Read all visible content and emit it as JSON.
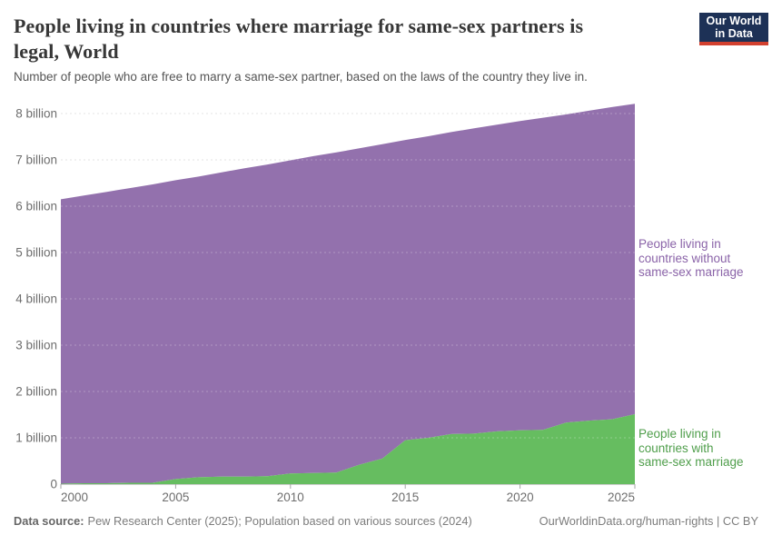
{
  "header": {
    "title_lines": [
      "People living in countries where marriage for same-sex partners is",
      "legal, World"
    ],
    "title": "People living in countries where marriage for same-sex partners is legal, World",
    "subtitle": "Number of people who are free to marry a same-sex partner, based on the laws of the country they live in.",
    "logo": {
      "line1": "Our World",
      "line2": "in Data",
      "bg_color": "#1d3156",
      "accent_color": "#d2402f"
    }
  },
  "chart_data": {
    "type": "area",
    "stacked": true,
    "title": "People living in countries where marriage for same-sex partners is legal, World",
    "xlabel": "",
    "ylabel": "",
    "x": [
      2000,
      2001,
      2002,
      2003,
      2004,
      2005,
      2006,
      2007,
      2008,
      2009,
      2010,
      2011,
      2012,
      2013,
      2014,
      2015,
      2016,
      2017,
      2018,
      2019,
      2020,
      2021,
      2022,
      2023,
      2024,
      2025
    ],
    "series": [
      {
        "name": "People living in countries with same-sex marriage",
        "color": "#66bd60",
        "values": [
          0.01,
          0.02,
          0.02,
          0.03,
          0.03,
          0.11,
          0.15,
          0.16,
          0.16,
          0.17,
          0.23,
          0.24,
          0.25,
          0.42,
          0.55,
          0.95,
          1.0,
          1.08,
          1.09,
          1.14,
          1.16,
          1.17,
          1.33,
          1.37,
          1.4,
          1.51
        ]
      },
      {
        "name": "People living in countries without same-sex marriage",
        "color": "#9371ad",
        "values": [
          6.14,
          6.21,
          6.29,
          6.36,
          6.44,
          6.45,
          6.49,
          6.57,
          6.66,
          6.73,
          6.76,
          6.84,
          6.91,
          6.83,
          6.79,
          6.48,
          6.51,
          6.52,
          6.59,
          6.62,
          6.68,
          6.74,
          6.65,
          6.69,
          6.74,
          6.7
        ]
      }
    ],
    "world_total": [
      6.15,
      6.23,
      6.31,
      6.39,
      6.47,
      6.56,
      6.64,
      6.73,
      6.82,
      6.9,
      6.99,
      7.08,
      7.16,
      7.25,
      7.34,
      7.43,
      7.51,
      7.6,
      7.68,
      7.76,
      7.84,
      7.91,
      7.98,
      8.06,
      8.14,
      8.21
    ],
    "ylim": [
      0,
      8.5
    ],
    "yticks": {
      "values": [
        0,
        1,
        2,
        3,
        4,
        5,
        6,
        7,
        8
      ],
      "labels": [
        "0",
        "1 billion",
        "2 billion",
        "3 billion",
        "4 billion",
        "5 billion",
        "6 billion",
        "7 billion",
        "8 billion"
      ]
    },
    "xticks": [
      2000,
      2005,
      2010,
      2015,
      2020,
      2025
    ],
    "grid": "horizontal dashed",
    "legend_position": "right annotations",
    "grid_color": "#d9d9d9",
    "axis_text_color": "#6e6e6e"
  },
  "annotations": {
    "without": {
      "lines": [
        "People living in",
        "countries without",
        "same-sex marriage"
      ],
      "color": "#8a63a8"
    },
    "with": {
      "lines": [
        "People living in",
        "countries with",
        "same-sex marriage"
      ],
      "color": "#4f9e4b"
    }
  },
  "footer": {
    "data_source_label": "Data source:",
    "data_source_text": "Pew Research Center (2025); Population based on various sources (2024)",
    "site_url": "OurWorldinData.org/human-rights",
    "separator": "|",
    "license": "CC BY"
  }
}
